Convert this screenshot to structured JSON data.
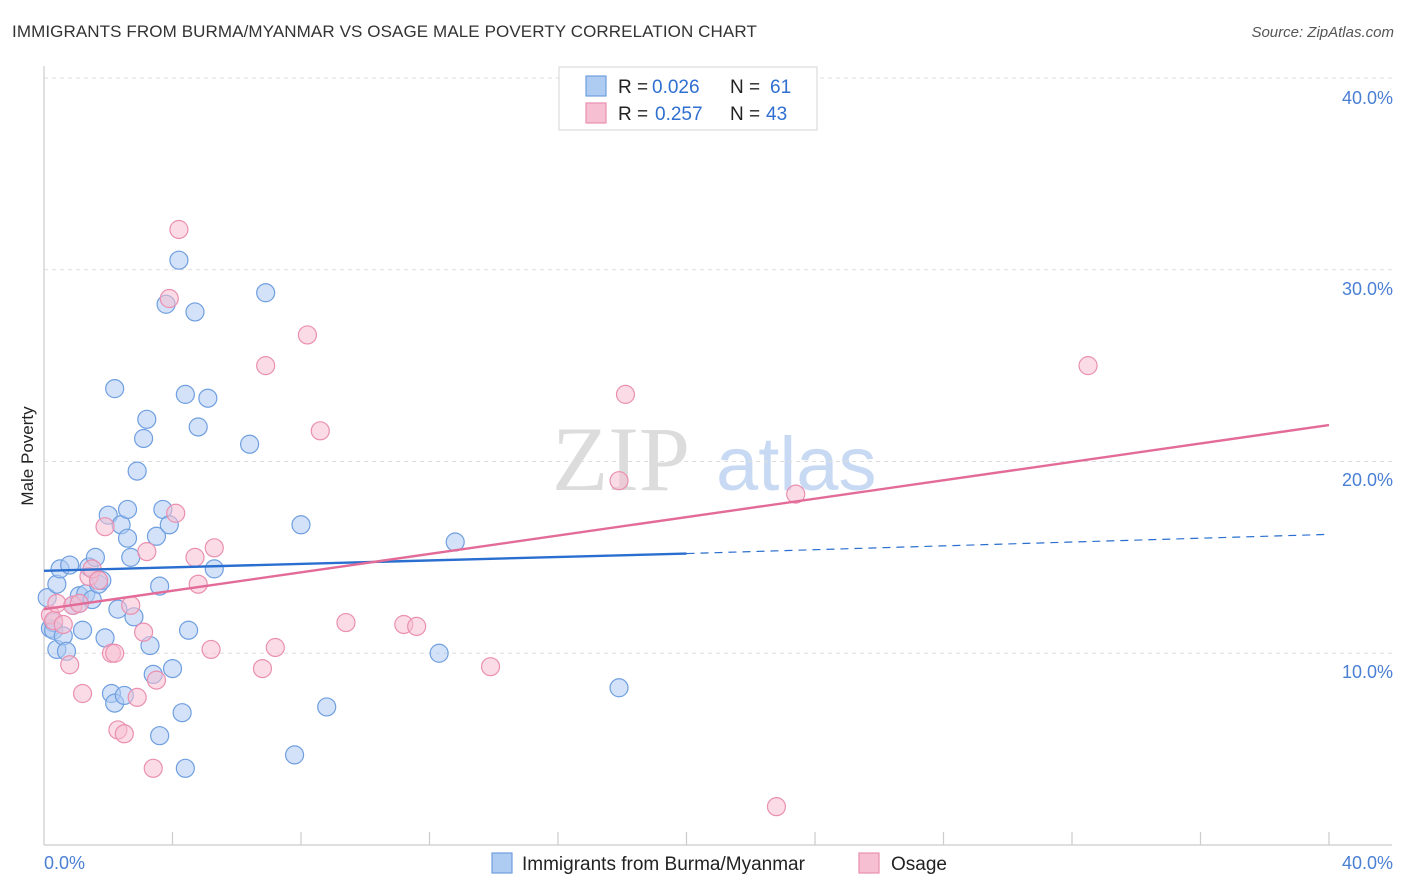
{
  "title": "IMMIGRANTS FROM BURMA/MYANMAR VS OSAGE MALE POVERTY CORRELATION CHART",
  "source": "Source: ZipAtlas.com",
  "watermark": {
    "zip": "ZIP",
    "atlas": "atlas"
  },
  "colors": {
    "blue_fill": "#aecbf2",
    "blue_stroke": "#6f9fe0",
    "blue_line": "#2a6fcf",
    "pink_fill": "#f7c0d2",
    "pink_stroke": "#ea8fb0",
    "pink_line": "#e36b98",
    "axis_label": "#4a7fd4"
  },
  "legend": {
    "rows": [
      {
        "r_label": "R = ",
        "r_value": "0.026",
        "n_label": "N = ",
        "n_value": "61"
      },
      {
        "r_label": "R = ",
        "r_value": "0.257",
        "n_label": "N = ",
        "n_value": "43"
      }
    ]
  },
  "bottom_legend": [
    "Immigrants from Burma/Myanmar",
    "Osage"
  ],
  "chart_data": {
    "type": "scatter",
    "title": "IMMIGRANTS FROM BURMA/MYANMAR VS OSAGE MALE POVERTY CORRELATION CHART",
    "xlabel": "",
    "ylabel": "Male Poverty",
    "xlim": [
      0,
      40
    ],
    "ylim": [
      0,
      40
    ],
    "x_tick_labels": [
      "0.0%",
      "40.0%"
    ],
    "y_ticks": [
      10,
      20,
      30,
      40
    ],
    "y_tick_labels": [
      "10.0%",
      "20.0%",
      "30.0%",
      "40.0%"
    ],
    "grid": true,
    "series": [
      {
        "name": "Immigrants from Burma/Myanmar",
        "R": 0.026,
        "N": 61,
        "trend": {
          "x0": 0,
          "y0": 14.3,
          "x1": 20,
          "y1": 15.2,
          "dashed_to_x": 40,
          "dashed_to_y": 16.2
        },
        "points": [
          [
            0.1,
            12.9
          ],
          [
            0.2,
            11.3
          ],
          [
            0.3,
            11.6
          ],
          [
            0.3,
            11.2
          ],
          [
            0.4,
            13.6
          ],
          [
            0.4,
            10.2
          ],
          [
            0.5,
            14.4
          ],
          [
            0.6,
            10.9
          ],
          [
            0.7,
            10.1
          ],
          [
            0.8,
            14.6
          ],
          [
            0.9,
            12.5
          ],
          [
            1.1,
            12.6
          ],
          [
            1.1,
            13.0
          ],
          [
            1.2,
            11.2
          ],
          [
            1.3,
            13.1
          ],
          [
            1.4,
            14.5
          ],
          [
            1.5,
            12.8
          ],
          [
            1.6,
            15.0
          ],
          [
            1.7,
            13.6
          ],
          [
            1.8,
            13.8
          ],
          [
            1.9,
            10.8
          ],
          [
            2.0,
            17.2
          ],
          [
            2.1,
            7.9
          ],
          [
            2.2,
            7.4
          ],
          [
            2.2,
            23.8
          ],
          [
            2.3,
            12.3
          ],
          [
            2.4,
            16.7
          ],
          [
            2.5,
            7.8
          ],
          [
            2.6,
            16.0
          ],
          [
            2.6,
            17.5
          ],
          [
            2.7,
            15.0
          ],
          [
            2.8,
            11.9
          ],
          [
            2.9,
            19.5
          ],
          [
            3.1,
            21.2
          ],
          [
            3.2,
            22.2
          ],
          [
            3.3,
            10.4
          ],
          [
            3.4,
            8.9
          ],
          [
            3.5,
            16.1
          ],
          [
            3.6,
            13.5
          ],
          [
            3.6,
            5.7
          ],
          [
            3.7,
            17.5
          ],
          [
            3.8,
            28.2
          ],
          [
            3.9,
            16.7
          ],
          [
            4.0,
            9.2
          ],
          [
            4.2,
            30.5
          ],
          [
            4.3,
            6.9
          ],
          [
            4.4,
            23.5
          ],
          [
            4.4,
            4.0
          ],
          [
            4.5,
            11.2
          ],
          [
            4.7,
            27.8
          ],
          [
            4.8,
            21.8
          ],
          [
            5.1,
            23.3
          ],
          [
            5.3,
            14.4
          ],
          [
            6.4,
            20.9
          ],
          [
            6.9,
            28.8
          ],
          [
            7.8,
            4.7
          ],
          [
            8.0,
            16.7
          ],
          [
            8.8,
            7.2
          ],
          [
            12.3,
            10.0
          ],
          [
            12.8,
            15.8
          ],
          [
            17.9,
            8.2
          ]
        ]
      },
      {
        "name": "Osage",
        "R": 0.257,
        "N": 43,
        "trend": {
          "x0": 0,
          "y0": 12.3,
          "x1": 40,
          "y1": 21.9
        },
        "points": [
          [
            0.2,
            12.0
          ],
          [
            0.3,
            11.7
          ],
          [
            0.4,
            12.6
          ],
          [
            0.6,
            11.5
          ],
          [
            0.8,
            9.4
          ],
          [
            0.9,
            12.5
          ],
          [
            1.1,
            12.6
          ],
          [
            1.2,
            7.9
          ],
          [
            1.4,
            14.0
          ],
          [
            1.5,
            14.4
          ],
          [
            1.7,
            13.8
          ],
          [
            1.9,
            16.6
          ],
          [
            2.1,
            10.0
          ],
          [
            2.2,
            10.0
          ],
          [
            2.3,
            6.0
          ],
          [
            2.5,
            5.8
          ],
          [
            2.7,
            12.5
          ],
          [
            2.9,
            7.7
          ],
          [
            3.1,
            11.1
          ],
          [
            3.2,
            15.3
          ],
          [
            3.4,
            4.0
          ],
          [
            3.5,
            8.6
          ],
          [
            3.9,
            28.5
          ],
          [
            4.1,
            17.3
          ],
          [
            4.2,
            32.1
          ],
          [
            4.7,
            15.0
          ],
          [
            4.8,
            13.6
          ],
          [
            5.2,
            10.2
          ],
          [
            5.3,
            15.5
          ],
          [
            6.8,
            9.2
          ],
          [
            6.9,
            25.0
          ],
          [
            7.2,
            10.3
          ],
          [
            8.2,
            26.6
          ],
          [
            8.6,
            21.6
          ],
          [
            9.4,
            11.6
          ],
          [
            11.2,
            11.5
          ],
          [
            11.6,
            11.4
          ],
          [
            13.9,
            9.3
          ],
          [
            17.9,
            19.0
          ],
          [
            18.1,
            23.5
          ],
          [
            22.8,
            2.0
          ],
          [
            23.4,
            18.3
          ],
          [
            32.5,
            25.0
          ]
        ]
      }
    ]
  }
}
